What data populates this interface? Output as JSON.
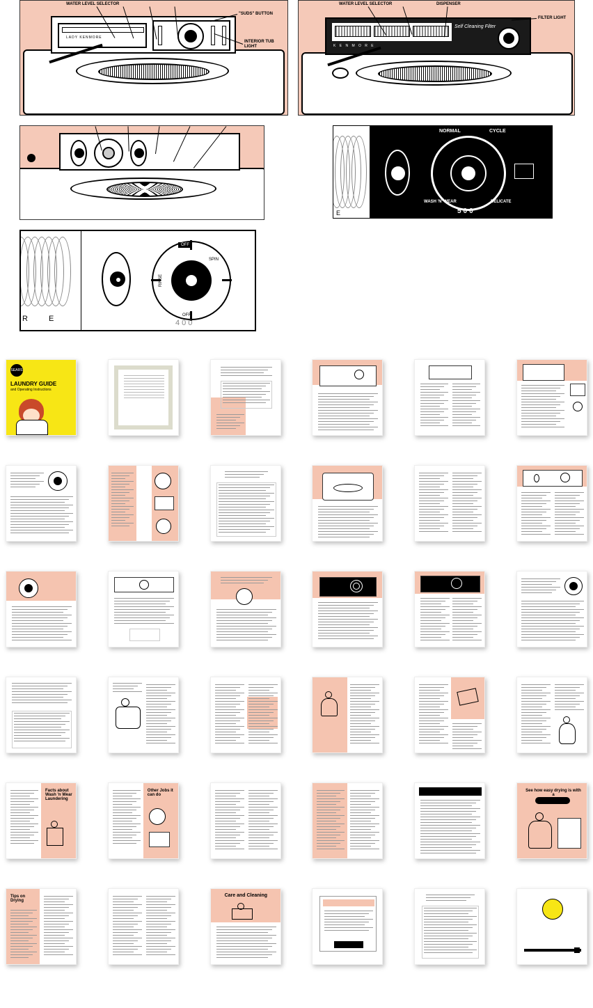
{
  "diagrams": {
    "d1": {
      "labels": {
        "waterLevel": "WATER LEVEL SELECTOR",
        "suds": "\"SUDS\" BUTTON",
        "interior": "INTERIOR TUB LIGHT",
        "filter": "FILTER LIGHT"
      },
      "panelText": "LADY KENMORE",
      "background": "#f5c9b8"
    },
    "d2": {
      "labels": {
        "waterLevel": "WATER LEVEL SELECTOR",
        "dispenser": "DISPENSER",
        "filterLight": "FILTER LIGHT"
      },
      "panelText": "Self Cleaning Filter",
      "background": "#f5c9b8"
    },
    "d3": {
      "background": "#f5c9b8"
    },
    "d4": {
      "labels": {
        "normal": "NORMAL",
        "cycle": "CYCLE",
        "wash": "WASH 'N' WEAR",
        "delicate": "DELICATE",
        "model": "500"
      },
      "background": "#000000",
      "textColor": "#ffffff"
    },
    "d5": {
      "letters": {
        "r": "R",
        "e": "E"
      },
      "model": "400",
      "dialSegments": [
        "OFF",
        "SPIN",
        "RINSE",
        "OFF"
      ]
    }
  },
  "thumbnails": {
    "coverTitle": "LAUNDRY GUIDE",
    "coverSubtitle": "and Operating Instructions",
    "coverBrand": "SEARS",
    "rows": 6,
    "cols": 6,
    "pinkColor": "#f5c4b0",
    "coverYellow": "#f7e615",
    "pages": [
      {
        "type": "cover"
      },
      {
        "type": "plain",
        "border": "#d4d4c0"
      },
      {
        "type": "text-pink-bottom"
      },
      {
        "type": "pink-top-diagram"
      },
      {
        "type": "text-diagram"
      },
      {
        "type": "pink-top-diagram-side"
      },
      {
        "type": "text-dial"
      },
      {
        "type": "pink-split"
      },
      {
        "type": "text-table"
      },
      {
        "type": "pink-top-washer"
      },
      {
        "type": "text-2col"
      },
      {
        "type": "pink-top-panel"
      },
      {
        "type": "pink-top-dial"
      },
      {
        "type": "text-panel"
      },
      {
        "type": "pink-top-text"
      },
      {
        "type": "pink-top-black"
      },
      {
        "type": "pink-top-black2"
      },
      {
        "type": "text-dial-side"
      },
      {
        "type": "text-table2"
      },
      {
        "type": "text-figure"
      },
      {
        "type": "text-2col-pink"
      },
      {
        "type": "pink-illus"
      },
      {
        "type": "pink-illus2"
      },
      {
        "type": "text-figure2"
      },
      {
        "type": "pink-right"
      },
      {
        "type": "pink-right2"
      },
      {
        "type": "text-2col2"
      },
      {
        "type": "pink-full"
      },
      {
        "type": "black-header"
      },
      {
        "type": "pink-full-illus"
      },
      {
        "type": "pink-left"
      },
      {
        "type": "text-2col3"
      },
      {
        "type": "pink-top-illus"
      },
      {
        "type": "text-box"
      },
      {
        "type": "text-table3"
      },
      {
        "type": "text-logo"
      }
    ]
  }
}
